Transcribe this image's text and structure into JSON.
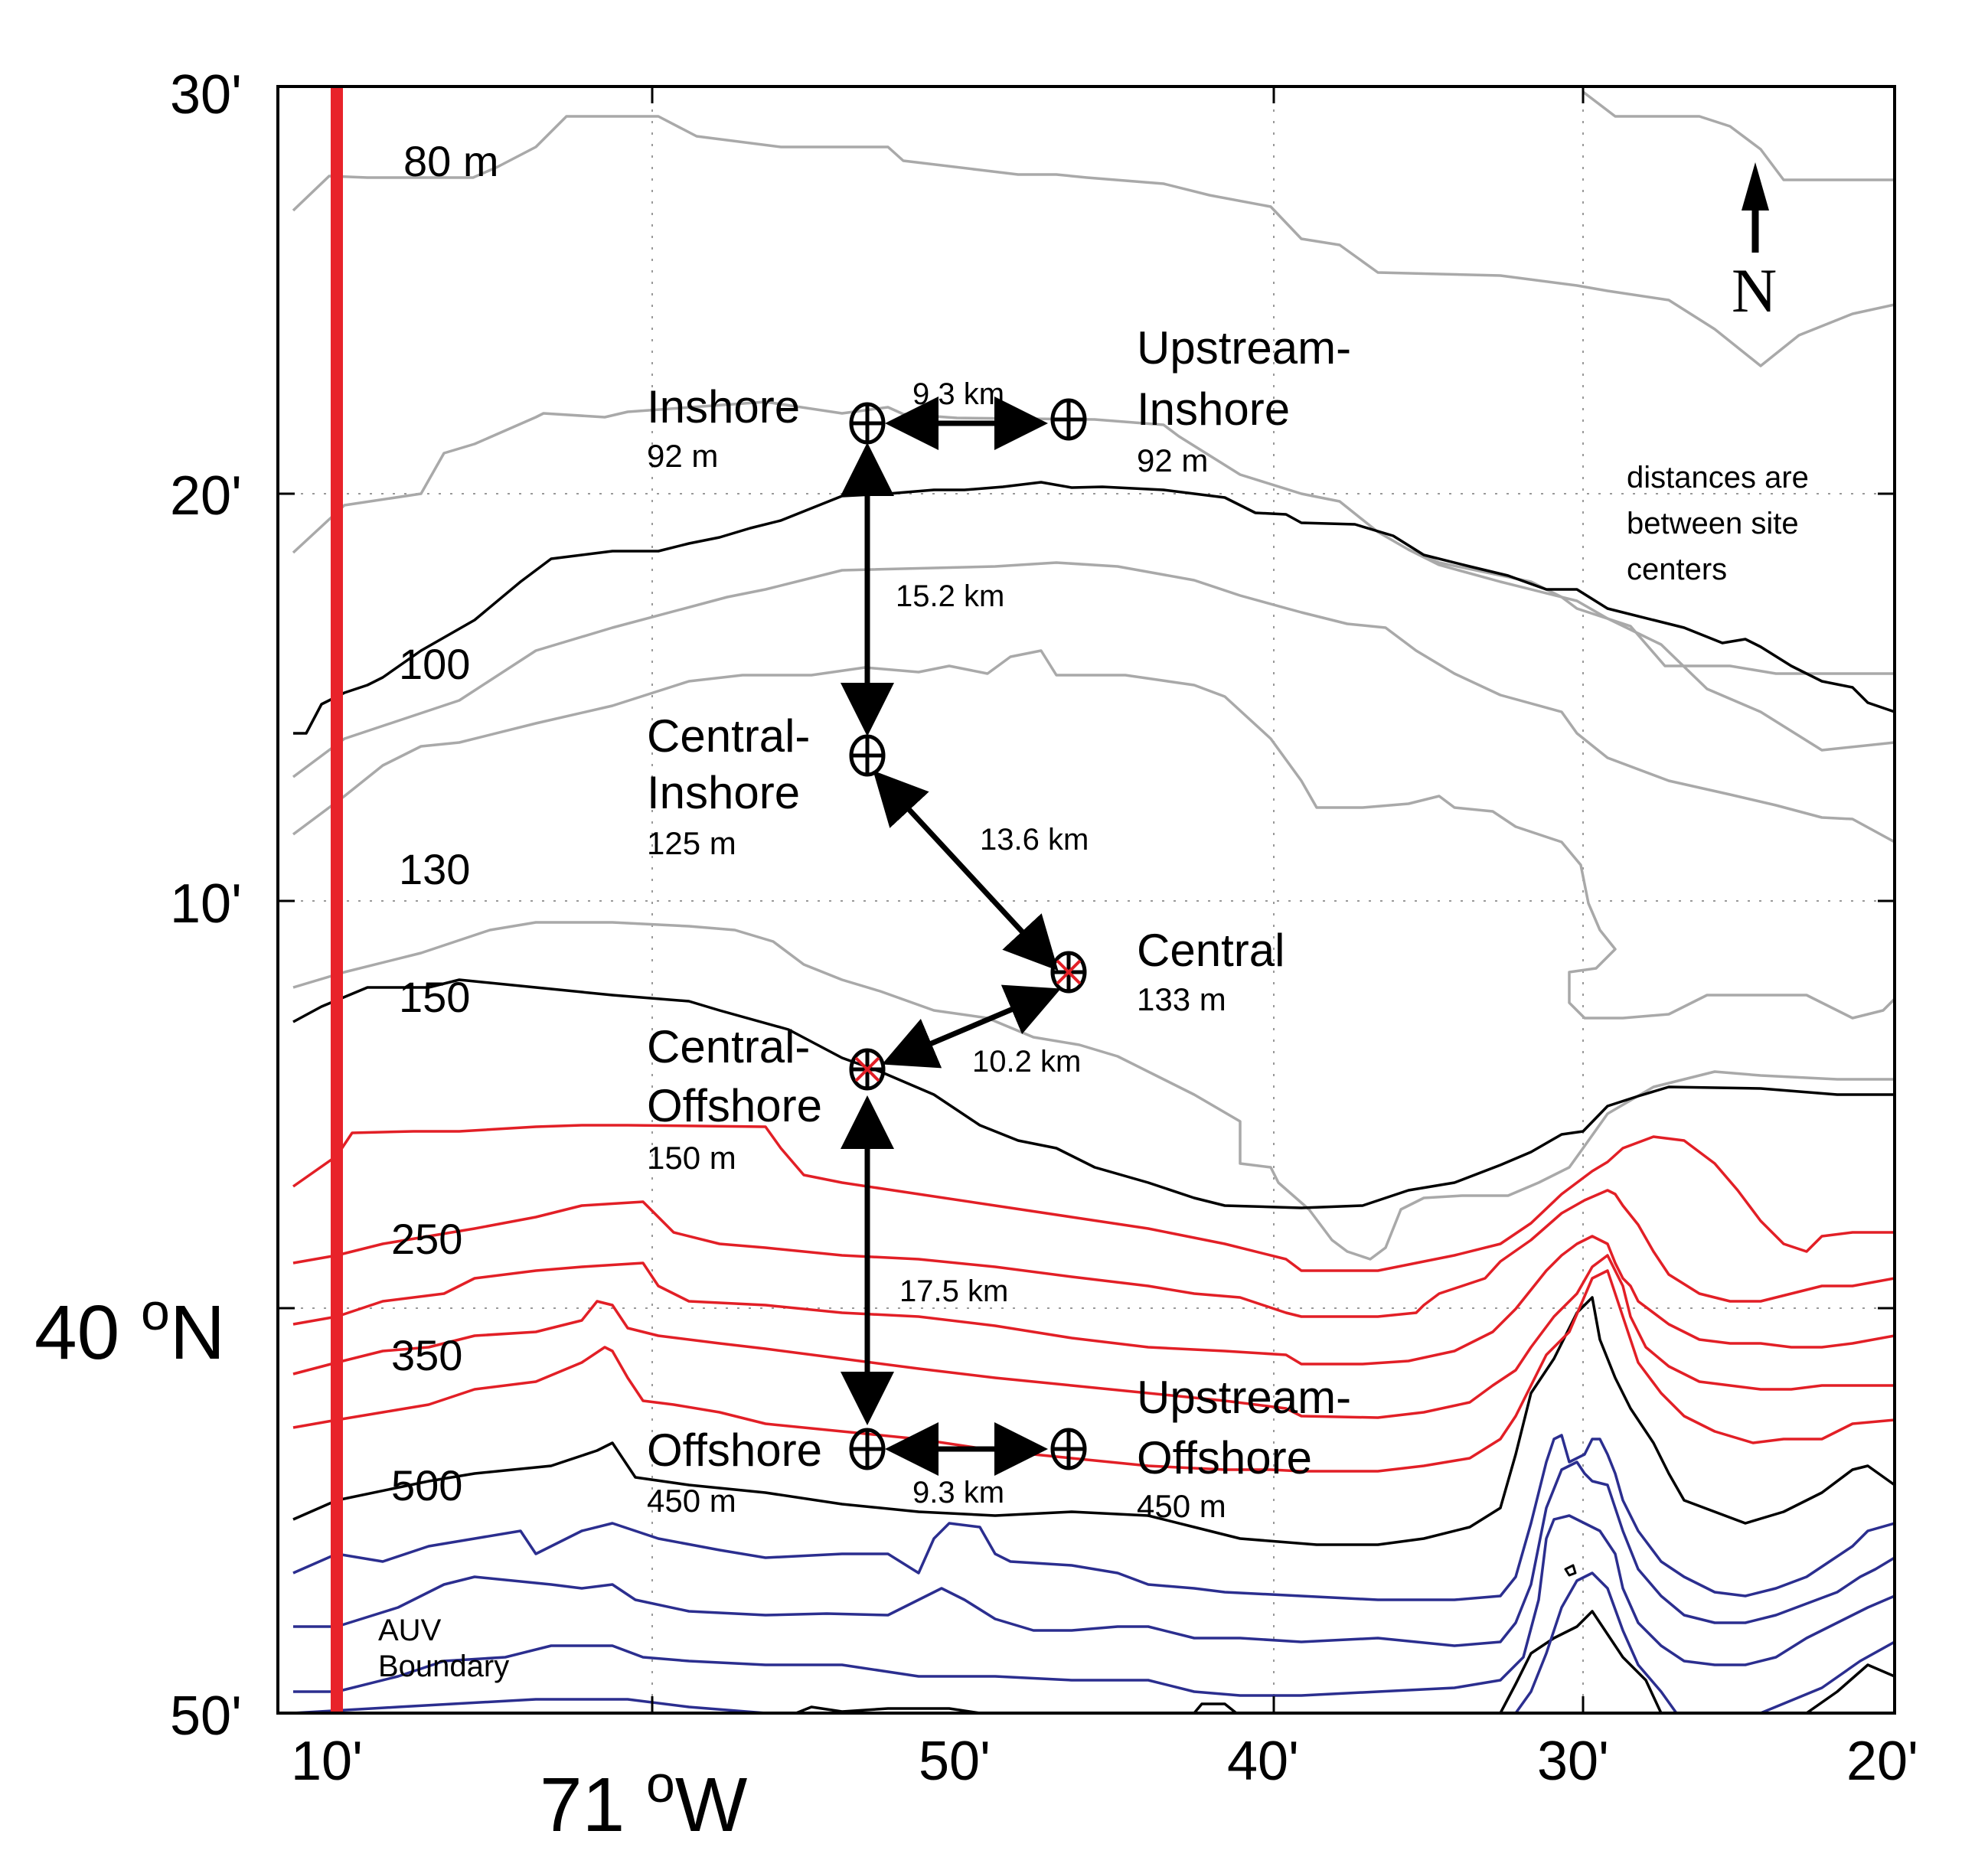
{
  "map": {
    "y_ticks": [
      "30'",
      "20'",
      "10'",
      "50'"
    ],
    "x_ticks": [
      "10'",
      "50'",
      "40'",
      "30'",
      "20'"
    ],
    "lat_label": "40 ",
    "lat_degree": "o",
    "lat_hemisphere": "N",
    "lon_label": "71 ",
    "lon_degree": "o",
    "lon_hemisphere": "W",
    "north_label": "N",
    "note_lines": [
      "distances are",
      "between site",
      "centers"
    ],
    "auv_label_lines": [
      "AUV",
      "Boundary"
    ],
    "colors": {
      "shallow_contour": "#a9a9a9",
      "major_contour": "#000000",
      "mid_contour": "#e21f26",
      "deep_contour": "#2b2e8f",
      "auv_boundary": "#e8232a",
      "selected_site_mark": "#e21f26"
    }
  },
  "contour_labels": [
    "80 m",
    "100",
    "130",
    "150",
    "250",
    "350",
    "500"
  ],
  "sites": [
    {
      "id": "inshore",
      "name_lines": [
        "Inshore"
      ],
      "depth": "92 m",
      "selected": false
    },
    {
      "id": "upstream-inshore",
      "name_lines": [
        "Upstream-",
        "Inshore"
      ],
      "depth": "92 m",
      "selected": false
    },
    {
      "id": "central-inshore",
      "name_lines": [
        "Central-",
        "Inshore"
      ],
      "depth": "125 m",
      "selected": false
    },
    {
      "id": "central",
      "name_lines": [
        "Central"
      ],
      "depth": "133 m",
      "selected": true
    },
    {
      "id": "central-offshore",
      "name_lines": [
        "Central-",
        "Offshore"
      ],
      "depth": "150 m",
      "selected": true
    },
    {
      "id": "offshore",
      "name_lines": [
        "Offshore"
      ],
      "depth": "450 m",
      "selected": false
    },
    {
      "id": "upstream-offshore",
      "name_lines": [
        "Upstream-",
        "Offshore"
      ],
      "depth": "450 m",
      "selected": false
    }
  ],
  "distances": [
    {
      "from": "inshore",
      "to": "upstream-inshore",
      "label": "9.3 km"
    },
    {
      "from": "inshore",
      "to": "central-inshore",
      "label": "15.2 km"
    },
    {
      "from": "central-inshore",
      "to": "central",
      "label": "13.6 km"
    },
    {
      "from": "central",
      "to": "central-offshore",
      "label": "10.2 km"
    },
    {
      "from": "central-offshore",
      "to": "offshore",
      "label": "17.5 km"
    },
    {
      "from": "offshore",
      "to": "upstream-offshore",
      "label": "9.3 km"
    }
  ]
}
